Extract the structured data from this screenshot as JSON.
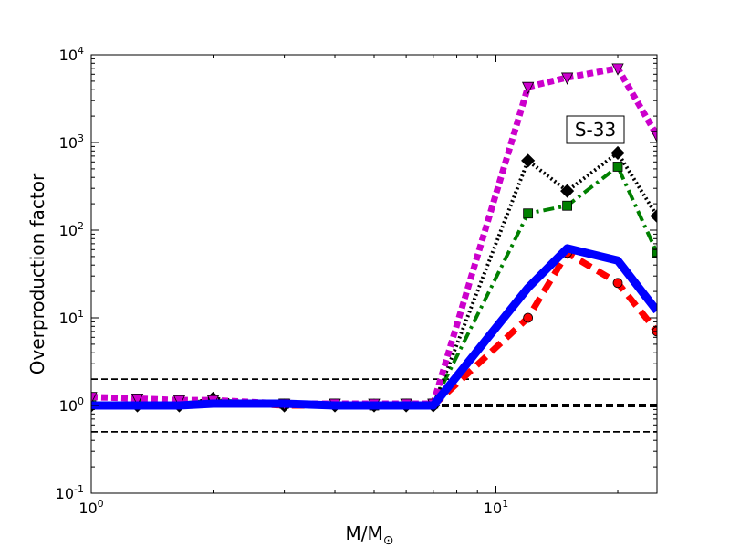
{
  "chart_data": {
    "type": "line",
    "title": "",
    "xlabel": "M/M",
    "xlabel_sub": "⊙",
    "ylabel": "Overproduction factor",
    "xscale": "log",
    "yscale": "log",
    "xlim": [
      1,
      25
    ],
    "ylim": [
      0.1,
      10000
    ],
    "grid": false,
    "legend": "none",
    "x_ticks": [
      {
        "value": 1,
        "base": "10",
        "exp": "0"
      },
      {
        "value": 10,
        "base": "10",
        "exp": "1"
      }
    ],
    "y_ticks": [
      {
        "value": 0.1,
        "base": "10",
        "exp": "-1"
      },
      {
        "value": 1,
        "base": "10",
        "exp": "0"
      },
      {
        "value": 10,
        "base": "10",
        "exp": "1"
      },
      {
        "value": 100,
        "base": "10",
        "exp": "2"
      },
      {
        "value": 1000,
        "base": "10",
        "exp": "3"
      },
      {
        "value": 10000,
        "base": "10",
        "exp": "4"
      }
    ],
    "annotation": "S-33",
    "reference_lines": [
      {
        "y": 2,
        "style": "dashed",
        "width": "thin"
      },
      {
        "y": 1,
        "style": "dashed",
        "width": "thick"
      },
      {
        "y": 0.5,
        "style": "dashed",
        "width": "thin"
      }
    ],
    "series": [
      {
        "color": "#ff0000",
        "dash": "dashed",
        "marker": "circle",
        "x": [
          1,
          1.3,
          1.65,
          2,
          3,
          4,
          5,
          6,
          7,
          12,
          15,
          20,
          25
        ],
        "y": [
          1.0,
          1.0,
          1.0,
          1.1,
          1.0,
          1.0,
          1.0,
          1.0,
          1.0,
          10,
          55,
          25,
          7
        ]
      },
      {
        "color": "#008000",
        "dash": "dashdot",
        "marker": "square",
        "x": [
          1,
          1.3,
          1.65,
          2,
          3,
          4,
          5,
          6,
          7,
          12,
          15,
          20,
          25
        ],
        "y": [
          1.05,
          1.05,
          1.05,
          1.15,
          1.05,
          1.05,
          1.0,
          1.05,
          1.05,
          155,
          190,
          530,
          55
        ]
      },
      {
        "color": "#000000",
        "dash": "dotted",
        "marker": "diamond",
        "x": [
          1,
          1.3,
          1.65,
          2,
          3,
          4,
          5,
          6,
          7,
          12,
          15,
          20,
          25
        ],
        "y": [
          1.0,
          1.0,
          1.0,
          1.2,
          1.0,
          1.0,
          1.0,
          1.0,
          1.0,
          620,
          280,
          760,
          145
        ]
      },
      {
        "color": "#cc00cc",
        "dash": "dotted-thick",
        "marker": "triangle-down",
        "x": [
          1,
          1.3,
          1.65,
          2,
          3,
          4,
          5,
          6,
          7,
          12,
          15,
          20,
          25
        ],
        "y": [
          1.25,
          1.2,
          1.15,
          1.15,
          1.05,
          1.05,
          1.05,
          1.05,
          1.05,
          4300,
          5500,
          7000,
          1200
        ]
      },
      {
        "color": "#0000ff",
        "dash": "solid",
        "marker": "none",
        "x": [
          1,
          1.3,
          1.65,
          2,
          3,
          4,
          5,
          6,
          7,
          12,
          15,
          20,
          25
        ],
        "y": [
          1.0,
          1.0,
          1.0,
          1.05,
          1.05,
          1.0,
          1.0,
          1.0,
          1.0,
          22,
          62,
          45,
          12
        ]
      }
    ]
  }
}
